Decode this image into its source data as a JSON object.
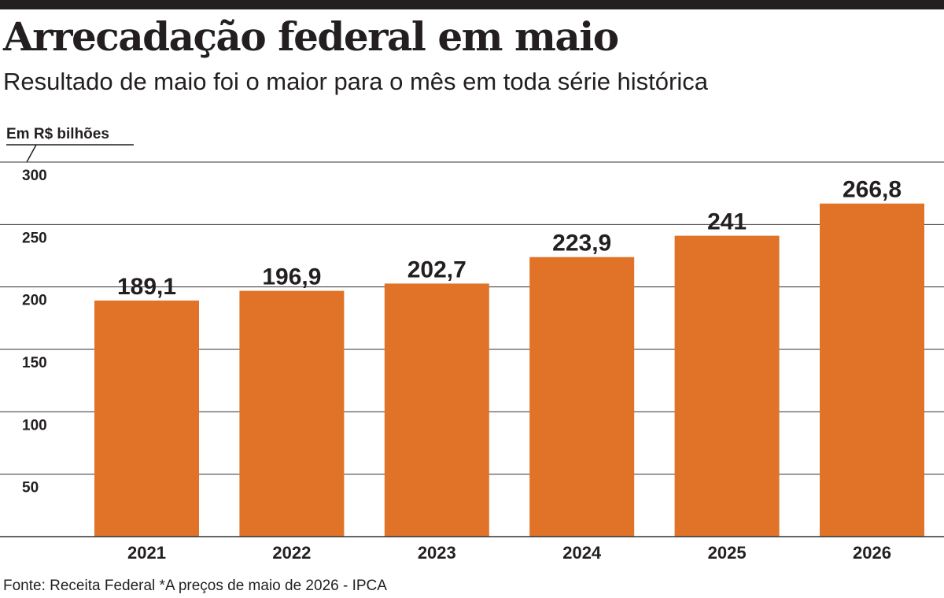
{
  "title": "Arrecadação federal em maio",
  "subtitle": "Resultado de maio foi o maior para o mês em toda série histórica",
  "source": "Fonte: Receita Federal *A preços de maio de 2026 - IPCA",
  "colors": {
    "bar": "#e07328",
    "grid": "#333333",
    "text": "#231f20",
    "top_rule": "#231f20"
  },
  "chart_data": {
    "type": "bar",
    "ylabel": "Em R$ bilhões",
    "categories": [
      "2021",
      "2022",
      "2023",
      "2024",
      "2025",
      "2026"
    ],
    "values": [
      189.1,
      196.9,
      202.7,
      223.9,
      241,
      266.8
    ],
    "value_labels": [
      "189,1",
      "196,9",
      "202,7",
      "223,9",
      "241",
      "266,8"
    ],
    "yticks": [
      50,
      100,
      150,
      200,
      250,
      300
    ],
    "ytick_labels": [
      "50",
      "100",
      "150",
      "200",
      "250",
      "300"
    ],
    "ylim": [
      0,
      300
    ],
    "grid": true,
    "legend": "none"
  }
}
